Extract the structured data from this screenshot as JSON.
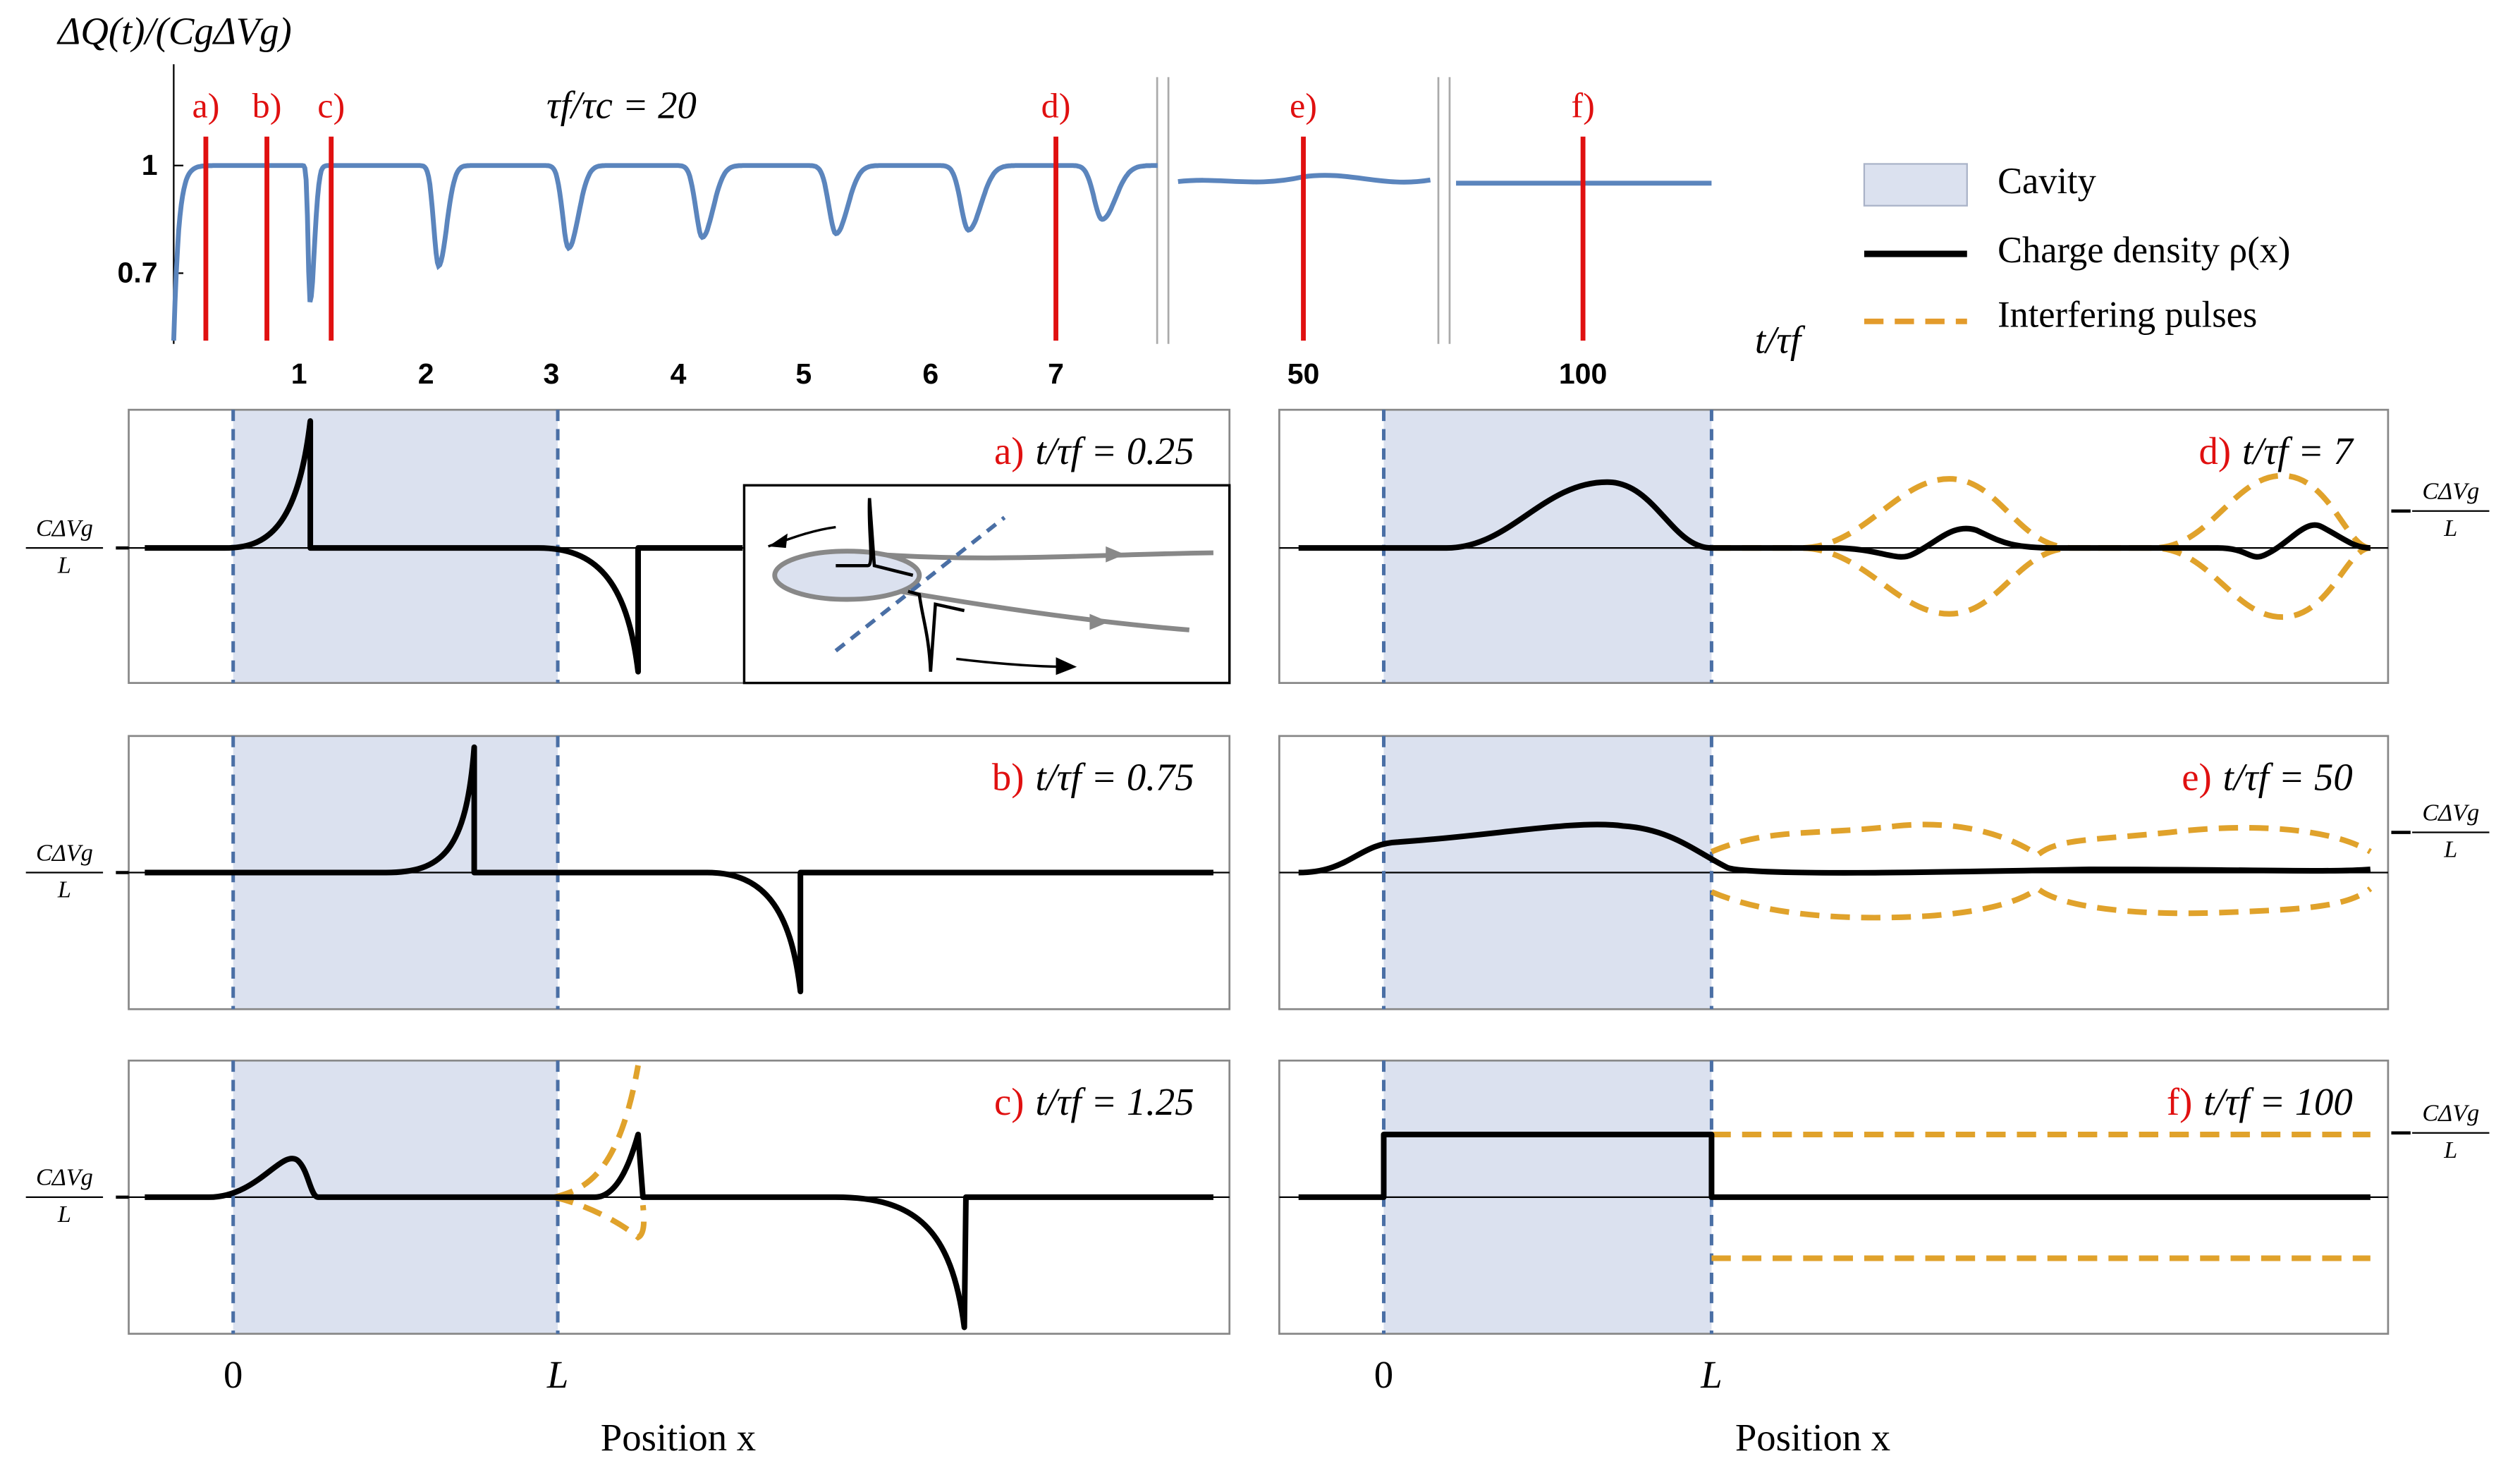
{
  "top": {
    "ylabel": "ΔQ(t)/(CgΔVg)",
    "annotation": "τf/τc = 20",
    "xlabel": "t/τf",
    "yticks": [
      "1",
      "0.7"
    ],
    "xticks": [
      "1",
      "2",
      "3",
      "4",
      "5",
      "6",
      "7",
      "50",
      "100"
    ],
    "markers": [
      "a)",
      "b)",
      "c)",
      "d)",
      "e)",
      "f)"
    ]
  },
  "legend": {
    "items": [
      "Cavity",
      "Charge density ρ(x)",
      "Interfering pulses"
    ]
  },
  "panels": [
    {
      "label": "a)",
      "title": "t/τf = 0.25"
    },
    {
      "label": "b)",
      "title": "t/τf = 0.75"
    },
    {
      "label": "c)",
      "title": "t/τf = 1.25"
    },
    {
      "label": "d)",
      "title": "t/τf = 7"
    },
    {
      "label": "e)",
      "title": "t/τf = 50"
    },
    {
      "label": "f)",
      "title": "t/τf = 100"
    }
  ],
  "side_label": {
    "numerator": "CΔVg",
    "denominator": "L"
  },
  "x_axis": {
    "zero": "0",
    "end": "L",
    "label": "Position x"
  }
}
